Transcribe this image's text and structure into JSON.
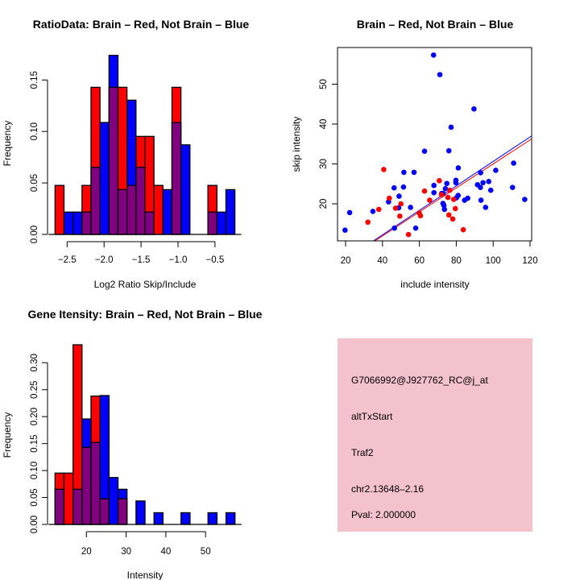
{
  "colors": {
    "red": "#ff0000",
    "blue": "#0000ff",
    "overlap": "#800080",
    "panel": "#f4c2cc",
    "pval": "#8b0000"
  },
  "chart_data": [
    {
      "id": "ratio",
      "type": "bar",
      "title": "RatioData: Brain – Red, Not Brain – Blue",
      "xlabel": "Log2 Ratio Skip/Include",
      "ylabel": "Frequency",
      "bin_start": -2.663,
      "bin_width": 0.1216,
      "series": [
        {
          "name": "Brain",
          "color": "red",
          "values": [
            0.0476,
            0,
            0,
            0.0476,
            0.1429,
            0,
            0.1429,
            0.1429,
            0.0476,
            0.0952,
            0.0952,
            0.0476,
            0,
            0.1429,
            0,
            0,
            0,
            0.0476,
            0,
            0
          ]
        },
        {
          "name": "Not Brain",
          "color": "blue",
          "values": [
            0,
            0.0217,
            0.0217,
            0.0217,
            0.0652,
            0.1087,
            0.1739,
            0.0435,
            0.1304,
            0.0652,
            0.0217,
            0,
            0.0435,
            0.1087,
            0.087,
            0,
            0,
            0.0217,
            0.0217,
            0.0435
          ]
        }
      ],
      "xticks": [
        -2.5,
        -2.0,
        -1.5,
        -1.0,
        -0.5
      ],
      "xtick_labels": [
        "−2.5",
        "−2.0",
        "−1.5",
        "−1.0",
        "−0.5"
      ],
      "yticks": [
        0,
        0.05,
        0.1,
        0.15
      ],
      "ytick_labels": [
        "0.00",
        "0.05",
        "0.10",
        "0.15"
      ]
    },
    {
      "id": "scatter",
      "type": "scatter",
      "title": "Brain – Red, Not Brain – Blue",
      "xlabel": "include intensity",
      "ylabel": "skip intensity",
      "xlim": [
        15.6,
        120.9
      ],
      "ylim": [
        10.5,
        59.2
      ],
      "xticks": [
        20,
        40,
        60,
        80,
        100,
        120
      ],
      "xtick_labels": [
        "20",
        "40",
        "60",
        "80",
        "100",
        "120"
      ],
      "yticks": [
        20,
        30,
        40,
        50
      ],
      "ytick_labels": [
        "20",
        "30",
        "40",
        "50"
      ],
      "series": [
        {
          "name": "Not Brain",
          "color": "blue",
          "fit": {
            "slope": 0.307,
            "intercept": -0.07
          },
          "points": [
            [
              19.7,
              13.4
            ],
            [
              22.2,
              17.8
            ],
            [
              34.8,
              18.1
            ],
            [
              46.5,
              13.9
            ],
            [
              43.3,
              20.5
            ],
            [
              46.3,
              24.0
            ],
            [
              49.0,
              21.9
            ],
            [
              48.8,
              19.0
            ],
            [
              51.4,
              24.2
            ],
            [
              51.6,
              27.9
            ],
            [
              55.2,
              19.1
            ],
            [
              57.1,
              27.9
            ],
            [
              58.0,
              13.9
            ],
            [
              62.8,
              33.2
            ],
            [
              67.7,
              57.3
            ],
            [
              71.1,
              52.4
            ],
            [
              67.9,
              24.6
            ],
            [
              67.9,
              22.8
            ],
            [
              72.1,
              22.6
            ],
            [
              72.8,
              22.6
            ],
            [
              72.8,
              20.1
            ],
            [
              73.3,
              19.6
            ],
            [
              73.6,
              18.6
            ],
            [
              74.1,
              23.8
            ],
            [
              74.9,
              25.1
            ],
            [
              76.0,
              33.3
            ],
            [
              77.2,
              39.2
            ],
            [
              79.8,
              25.9
            ],
            [
              79.8,
              25.3
            ],
            [
              80.1,
              21.5
            ],
            [
              81.0,
              22.1
            ],
            [
              81.1,
              29.0
            ],
            [
              84.5,
              20.9
            ],
            [
              86.2,
              21.4
            ],
            [
              89.6,
              43.8
            ],
            [
              91.5,
              24.8
            ],
            [
              93.1,
              24.1
            ],
            [
              93.2,
              27.8
            ],
            [
              93.4,
              20.9
            ],
            [
              94.5,
              25.3
            ],
            [
              95.9,
              19.1
            ],
            [
              97.6,
              25.6
            ],
            [
              98.7,
              23.4
            ],
            [
              101.4,
              28.4
            ],
            [
              110.5,
              24.1
            ],
            [
              111.1,
              30.2
            ],
            [
              117.1,
              21.1
            ]
          ]
        },
        {
          "name": "Brain",
          "color": "red",
          "fit": {
            "slope": 0.301,
            "intercept": -0.1
          },
          "points": [
            [
              32.1,
              15.4
            ],
            [
              38.0,
              18.6
            ],
            [
              40.7,
              28.6
            ],
            [
              43.7,
              21.4
            ],
            [
              47.1,
              18.9
            ],
            [
              49.4,
              16.9
            ],
            [
              50.0,
              20.0
            ],
            [
              54.1,
              12.3
            ],
            [
              59.9,
              17.7
            ],
            [
              60.6,
              17.0
            ],
            [
              62.8,
              23.2
            ],
            [
              65.6,
              20.9
            ],
            [
              70.8,
              25.8
            ],
            [
              72.0,
              22.3
            ],
            [
              75.5,
              21.6
            ],
            [
              76.0,
              17.2
            ],
            [
              76.5,
              23.4
            ],
            [
              78.1,
              16.2
            ],
            [
              78.6,
              21.1
            ],
            [
              79.5,
              18.8
            ],
            [
              83.8,
              13.5
            ]
          ]
        }
      ]
    },
    {
      "id": "gene",
      "type": "bar",
      "title": "Gene Itensity: Brain – Red, Not Brain – Blue",
      "xlabel": "Intensity",
      "ylabel": "Frequency",
      "bin_start": 12.09,
      "bin_width": 2.266,
      "series": [
        {
          "name": "Brain",
          "color": "red",
          "values": [
            0.0952,
            0.0952,
            0.3333,
            0.1429,
            0.2381,
            0.0476,
            0,
            0.0476,
            0,
            0,
            0,
            0,
            0,
            0,
            0,
            0,
            0,
            0,
            0,
            0
          ]
        },
        {
          "name": "Not Brain",
          "color": "blue",
          "values": [
            0.0652,
            0,
            0.0652,
            0.1957,
            0.1522,
            0.2391,
            0.087,
            0.0652,
            0,
            0.0435,
            0,
            0.0217,
            0,
            0,
            0.0217,
            0,
            0,
            0.0217,
            0,
            0.0217
          ]
        }
      ],
      "xticks": [
        20,
        30,
        40,
        50
      ],
      "xtick_labels": [
        "20",
        "30",
        "40",
        "50"
      ],
      "yticks": [
        0,
        0.05,
        0.1,
        0.15,
        0.2,
        0.25,
        0.3
      ],
      "ytick_labels": [
        "0.00",
        "0.05",
        "0.10",
        "0.15",
        "0.20",
        "0.25",
        "0.30"
      ]
    }
  ],
  "info_panel": {
    "probe_id": "G7066992@J927762_RC@j_at",
    "event_type": "altTxStart",
    "gene": "Traf2",
    "location": "chr2.13648–2.16",
    "pval": "Pval: 2.000000"
  }
}
